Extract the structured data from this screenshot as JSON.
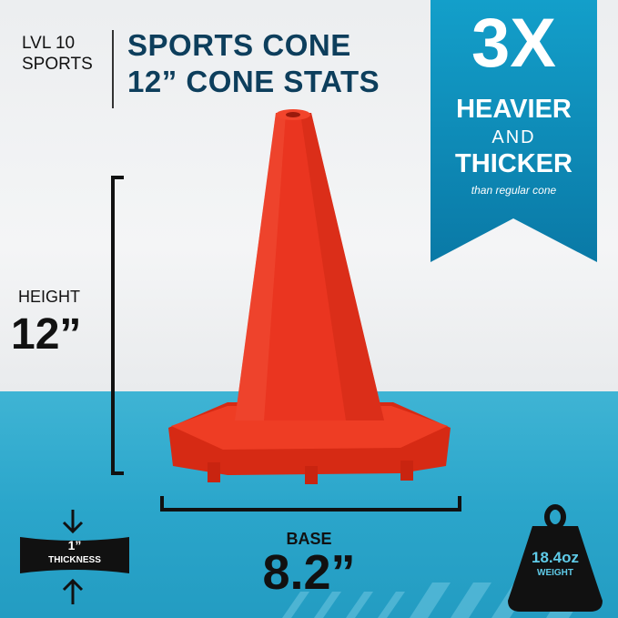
{
  "brand": {
    "line1": "LVL 10",
    "line2": "SPORTS"
  },
  "title": {
    "line1": "SPORTS CONE",
    "line2": "12” CONE STATS"
  },
  "banner": {
    "big": "3X",
    "heavier": "HEAVIER",
    "and": "AND",
    "thicker": "THICKER",
    "note": "than regular cone",
    "color": "#1390be"
  },
  "height": {
    "label": "HEIGHT",
    "value": "12”"
  },
  "base": {
    "label": "BASE",
    "value": "8.2”"
  },
  "thickness": {
    "value": "1”",
    "label": "THICKNESS"
  },
  "weight": {
    "value": "18.4oz",
    "label": "WEIGHT"
  },
  "colors": {
    "cone": "#e8341f",
    "floor": "#2ba6cb",
    "title": "#0d3e5c"
  }
}
